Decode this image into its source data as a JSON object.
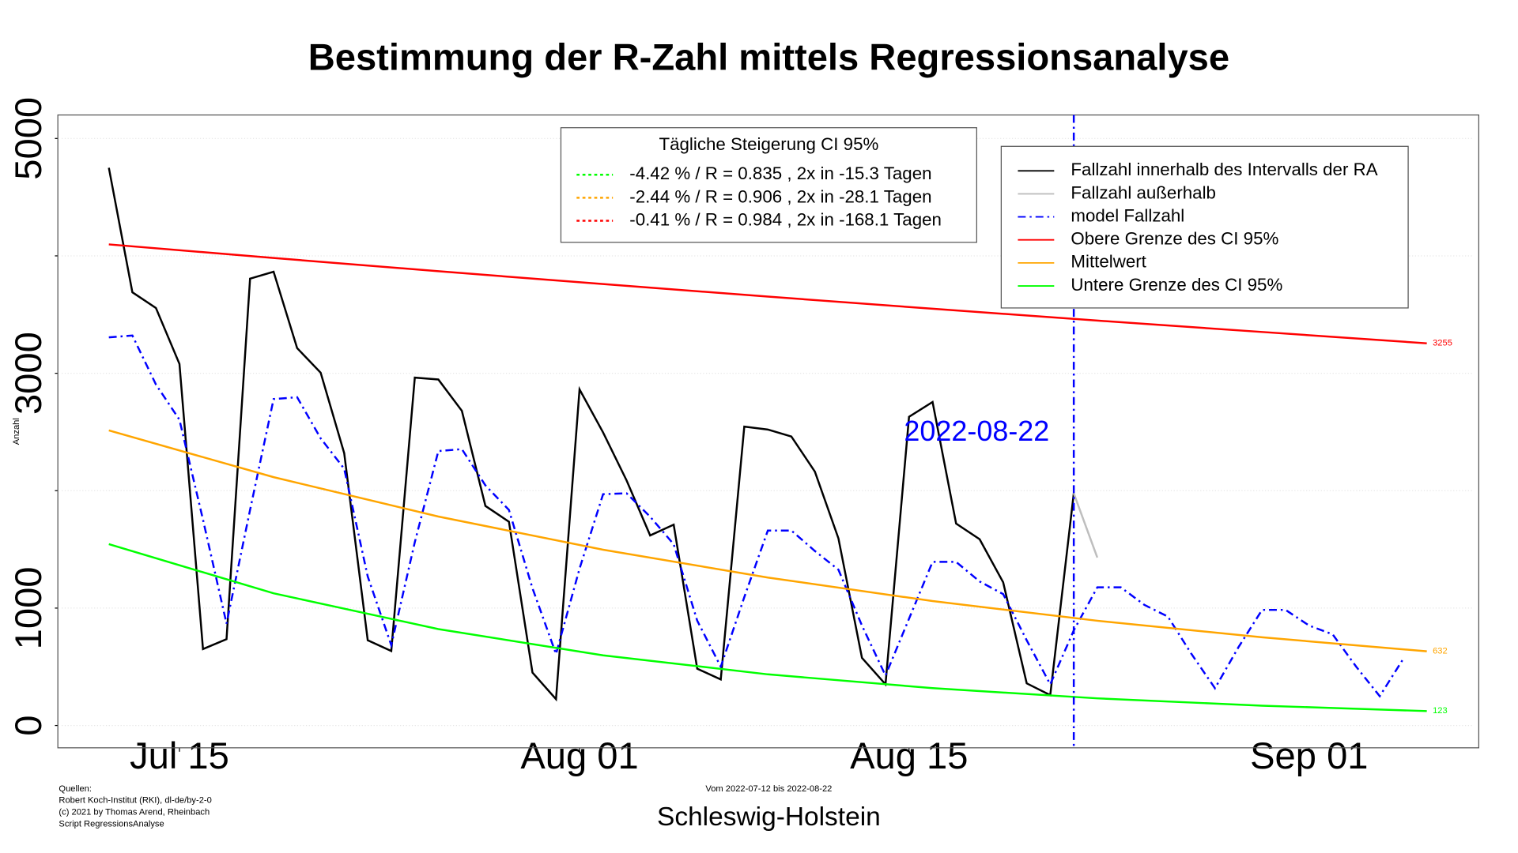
{
  "chart_data": {
    "type": "line",
    "title": "Bestimmung der R-Zahl mittels Regressionsanalyse",
    "subtitle": "Vom 2022-07-12 bis 2022-08-22",
    "xlabel": "Schleswig-Holstein",
    "ylabel": "Anzahl",
    "sources": [
      "Quellen:",
      "Robert Koch-Institut (RKI), dl-de/by-2-0",
      "(c) 2021 by Thomas Arend, Rheinbach",
      "Script RegressionsAnalyse"
    ],
    "xlim": [
      "2022-07-10",
      "2022-09-08"
    ],
    "xticks": [
      {
        "value": "2022-07-15",
        "label": "Jul 15"
      },
      {
        "value": "2022-08-01",
        "label": "Aug 01"
      },
      {
        "value": "2022-08-15",
        "label": "Aug 15"
      },
      {
        "value": "2022-09-01",
        "label": "Sep 01"
      }
    ],
    "ylim": [
      -190,
      5200
    ],
    "yticks": [
      0,
      1000,
      {
        "value": 2000,
        "label": null
      },
      3000,
      {
        "value": 4000,
        "label": null
      },
      5000
    ],
    "grid": true,
    "vline": {
      "x": "2022-08-22",
      "color": "#0000ff"
    },
    "series": [
      {
        "name": "Fallzahl innerhalb des Intervalls der RA",
        "color": "#000000",
        "dash": "solid",
        "x": [
          "2022-07-12",
          "2022-07-13",
          "2022-07-14",
          "2022-07-15",
          "2022-07-16",
          "2022-07-17",
          "2022-07-18",
          "2022-07-19",
          "2022-07-20",
          "2022-07-21",
          "2022-07-22",
          "2022-07-23",
          "2022-07-24",
          "2022-07-25",
          "2022-07-26",
          "2022-07-27",
          "2022-07-28",
          "2022-07-29",
          "2022-07-30",
          "2022-07-31",
          "2022-08-01",
          "2022-08-02",
          "2022-08-03",
          "2022-08-04",
          "2022-08-05",
          "2022-08-06",
          "2022-08-07",
          "2022-08-08",
          "2022-08-09",
          "2022-08-10",
          "2022-08-11",
          "2022-08-12",
          "2022-08-13",
          "2022-08-14",
          "2022-08-15",
          "2022-08-16",
          "2022-08-17",
          "2022-08-18",
          "2022-08-19",
          "2022-08-20",
          "2022-08-21",
          "2022-08-22"
        ],
        "values": [
          4750,
          3690,
          3556,
          3080,
          651,
          735,
          3806,
          3865,
          3214,
          3005,
          2320,
          726,
          634,
          2963,
          2947,
          2680,
          1870,
          1736,
          451,
          225,
          2863,
          2496,
          2087,
          1619,
          1711,
          484,
          392,
          2546,
          2521,
          2462,
          2162,
          1594,
          576,
          351,
          2629,
          2755,
          1720,
          1586,
          1219,
          359,
          259,
          1978
        ]
      },
      {
        "name": "Fallzahl außerhalb",
        "color": "#bebebe",
        "dash": "solid",
        "x": [
          "2022-08-22",
          "2022-08-23"
        ],
        "values": [
          1978,
          1430
        ]
      },
      {
        "name": "model Fallzahl",
        "color": "#0000ff",
        "dash": "dashdot",
        "x": [
          "2022-07-12",
          "2022-07-13",
          "2022-07-14",
          "2022-07-15",
          "2022-07-16",
          "2022-07-17",
          "2022-07-18",
          "2022-07-19",
          "2022-07-20",
          "2022-07-21",
          "2022-07-22",
          "2022-07-23",
          "2022-07-24",
          "2022-07-25",
          "2022-07-26",
          "2022-07-27",
          "2022-07-28",
          "2022-07-29",
          "2022-07-30",
          "2022-07-31",
          "2022-08-01",
          "2022-08-02",
          "2022-08-03",
          "2022-08-04",
          "2022-08-05",
          "2022-08-06",
          "2022-08-07",
          "2022-08-08",
          "2022-08-09",
          "2022-08-10",
          "2022-08-11",
          "2022-08-12",
          "2022-08-13",
          "2022-08-14",
          "2022-08-15",
          "2022-08-16",
          "2022-08-17",
          "2022-08-18",
          "2022-08-19",
          "2022-08-20",
          "2022-08-21",
          "2022-08-22",
          "2022-08-23",
          "2022-08-24",
          "2022-08-25",
          "2022-08-26",
          "2022-08-27",
          "2022-08-28",
          "2022-08-29",
          "2022-08-30",
          "2022-08-31",
          "2022-09-01",
          "2022-09-02",
          "2022-09-03",
          "2022-09-04",
          "2022-09-05"
        ],
        "values": [
          3306,
          3322,
          2905,
          2604,
          1753,
          868,
          1836,
          2780,
          2796,
          2446,
          2187,
          1269,
          684,
          1561,
          2337,
          2354,
          2045,
          1836,
          1169,
          609,
          1336,
          1970,
          1978,
          1778,
          1544,
          893,
          501,
          1093,
          1661,
          1661,
          1486,
          1327,
          851,
          426,
          910,
          1394,
          1394,
          1227,
          1119,
          726,
          351,
          810,
          1177,
          1177,
          1027,
          927,
          609,
          317,
          668,
          985,
          985,
          851,
          776,
          501,
          250,
          568
        ]
      },
      {
        "name": "Obere Grenze des CI 95%",
        "color": "#ff0000",
        "dash": "solid",
        "end_label": true,
        "x": [
          "2022-07-12",
          "2022-07-19",
          "2022-07-26",
          "2022-08-02",
          "2022-08-09",
          "2022-08-16",
          "2022-08-23",
          "2022-08-30",
          "2022-09-06"
        ],
        "values": [
          4098,
          3982,
          3869,
          3760,
          3653,
          3550,
          3449,
          3352,
          3255
        ]
      },
      {
        "name": "Mittelwert",
        "color": "#ffa500",
        "dash": "solid",
        "end_label": true,
        "x": [
          "2022-07-12",
          "2022-07-19",
          "2022-07-26",
          "2022-08-02",
          "2022-08-09",
          "2022-08-16",
          "2022-08-23",
          "2022-08-30",
          "2022-09-06"
        ],
        "values": [
          2513,
          2115,
          1780,
          1497,
          1260,
          1060,
          892,
          751,
          632
        ]
      },
      {
        "name": "Untere Grenze des CI 95%",
        "color": "#00ff00",
        "dash": "solid",
        "end_label": true,
        "x": [
          "2022-07-12",
          "2022-07-19",
          "2022-07-26",
          "2022-08-02",
          "2022-08-09",
          "2022-08-16",
          "2022-08-23",
          "2022-08-30",
          "2022-09-06"
        ],
        "values": [
          1545,
          1126,
          821,
          598,
          436,
          318,
          231,
          169,
          123
        ]
      }
    ],
    "ci_legend": {
      "title": "Tägliche Steigerung CI  95%",
      "entries": [
        {
          "text": "-4.42 % / R = 0.835 , 2x in -15.3 Tagen",
          "color": "#00ff00"
        },
        {
          "text": "-2.44 % / R = 0.906 , 2x in -28.1 Tagen",
          "color": "#ffa500"
        },
        {
          "text": "-0.41 % / R = 0.984 , 2x in -168.1 Tagen",
          "color": "#ff0000"
        }
      ]
    }
  }
}
